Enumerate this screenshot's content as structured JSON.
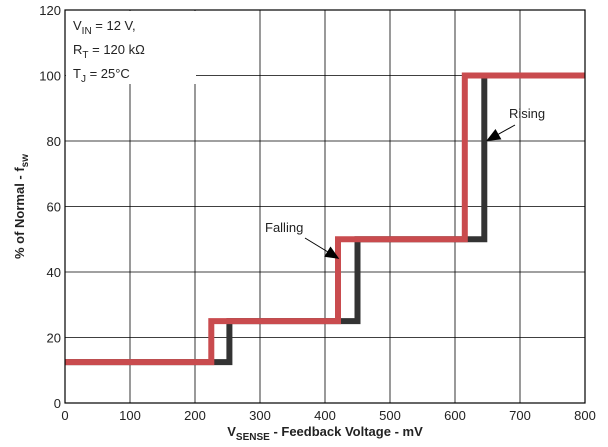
{
  "chart_data": {
    "type": "line",
    "step": true,
    "xlim": [
      0,
      800
    ],
    "ylim": [
      0,
      120
    ],
    "x_ticks": [
      0,
      100,
      200,
      300,
      400,
      500,
      600,
      700,
      800
    ],
    "y_ticks": [
      0,
      20,
      40,
      60,
      80,
      100,
      120
    ],
    "x_tick_labels": [
      "0",
      "100",
      "200",
      "300",
      "400",
      "500",
      "600",
      "700",
      "800"
    ],
    "y_tick_labels": [
      "0",
      "20",
      "40",
      "60",
      "80",
      "100",
      "120"
    ],
    "xlabel": {
      "main": "V",
      "sub": "SENSE",
      "rest": " - Feedback Voltage - mV"
    },
    "ylabel": {
      "main": "% of Normal - f",
      "sub": "sw"
    },
    "grid": true,
    "conditions": [
      {
        "main": "V",
        "sub": "IN",
        "rest": " = 12 V,"
      },
      {
        "main": "R",
        "sub": "T",
        "rest": " = 120 kΩ"
      },
      {
        "main": "T",
        "sub": "J",
        "rest": " = 25°C"
      }
    ],
    "series": [
      {
        "name": "Rising",
        "color": "#333333",
        "x": [
          0,
          253,
          253,
          450,
          450,
          645,
          645,
          800
        ],
        "y": [
          12.5,
          12.5,
          25,
          25,
          50,
          50,
          100,
          100
        ]
      },
      {
        "name": "Falling",
        "color": "#c94b4e",
        "x": [
          0,
          225,
          225,
          420,
          420,
          615,
          615,
          800
        ],
        "y": [
          12.5,
          12.5,
          25,
          25,
          50,
          50,
          100,
          100
        ]
      }
    ],
    "annotations": [
      {
        "text": "Rising",
        "series": "Rising",
        "arrow_tip": [
          648,
          80
        ]
      },
      {
        "text": "Falling",
        "series": "Falling",
        "arrow_tip": [
          422,
          44
        ]
      }
    ]
  }
}
